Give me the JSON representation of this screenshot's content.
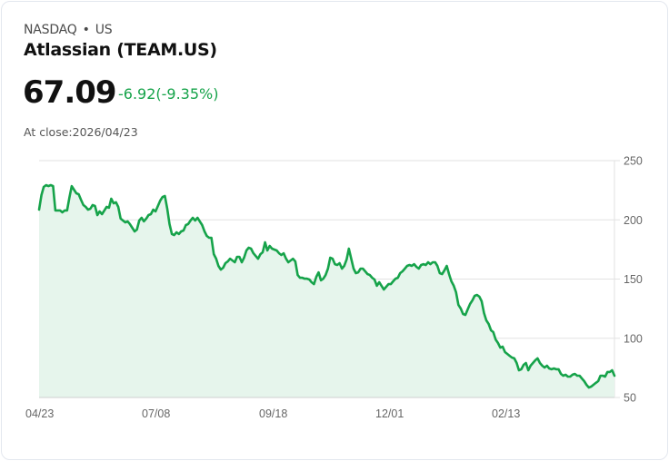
{
  "header": {
    "exchange": "NASDAQ",
    "separator": "•",
    "region": "US",
    "name": "Atlassian (TEAM.US)",
    "price": "67.09",
    "change": "-6.92(-9.35%)",
    "close_label": "At close:2026/04/23"
  },
  "colors": {
    "line": "#16a34a",
    "fill": "#e6f5ec",
    "grid": "#e2e2e2",
    "change": "#16a34a"
  },
  "chart_data": {
    "type": "area",
    "title": "Atlassian (TEAM.US)",
    "xlabel": "",
    "ylabel": "",
    "ylim": [
      50,
      250
    ],
    "yticks": [
      250,
      200,
      150,
      100,
      50
    ],
    "xticks": [
      "04/23",
      "07/08",
      "09/18",
      "12/01",
      "02/13"
    ],
    "grid": true,
    "legend": "none",
    "axis_position": "right",
    "start": "04/23",
    "end": "2026/04/23",
    "values": [
      208.6,
      220.9,
      227.8,
      229.3,
      228.5,
      229.3,
      228.5,
      207.9,
      207.9,
      207.9,
      206.3,
      207.9,
      207.9,
      218.6,
      228.5,
      225.5,
      222.4,
      221.6,
      217.0,
      212.5,
      210.9,
      208.6,
      209.4,
      212.5,
      211.7,
      204.0,
      207.1,
      204.8,
      207.9,
      210.9,
      210.2,
      217.8,
      214.0,
      214.8,
      210.9,
      201.0,
      199.4,
      197.9,
      198.7,
      196.4,
      193.3,
      190.2,
      191.8,
      199.4,
      201.7,
      198.7,
      201.0,
      204.0,
      204.8,
      208.6,
      207.1,
      211.7,
      216.3,
      219.3,
      220.1,
      209.4,
      196.4,
      188.0,
      187.2,
      189.5,
      188.0,
      190.2,
      191.0,
      195.6,
      196.4,
      199.4,
      201.7,
      199.4,
      201.7,
      198.7,
      195.6,
      190.2,
      186.4,
      184.9,
      184.9,
      171.1,
      167.2,
      161.1,
      158.0,
      159.6,
      163.4,
      164.9,
      167.2,
      165.7,
      164.2,
      168.8,
      168.8,
      164.2,
      168.0,
      174.1,
      176.4,
      175.7,
      171.8,
      169.5,
      167.2,
      171.0,
      172.6,
      181.0,
      174.1,
      178.0,
      175.7,
      174.9,
      174.1,
      171.8,
      170.3,
      171.8,
      167.2,
      164.2,
      165.7,
      167.2,
      164.9,
      153.4,
      151.1,
      151.1,
      150.3,
      150.3,
      149.6,
      147.3,
      145.7,
      151.9,
      155.7,
      148.9,
      150.3,
      153.4,
      158.8,
      168.0,
      167.2,
      162.6,
      161.9,
      163.4,
      158.8,
      161.1,
      166.5,
      175.7,
      167.2,
      158.8,
      155.0,
      155.7,
      158.8,
      158.8,
      156.5,
      154.2,
      153.4,
      151.1,
      149.6,
      144.3,
      147.3,
      144.3,
      141.2,
      143.5,
      145.7,
      145.7,
      148.1,
      150.3,
      151.1,
      155.0,
      156.5,
      158.8,
      161.1,
      161.9,
      161.1,
      162.6,
      160.3,
      158.8,
      161.9,
      162.6,
      161.9,
      164.2,
      162.6,
      164.2,
      164.2,
      161.1,
      155.0,
      154.2,
      157.3,
      161.1,
      154.2,
      148.1,
      144.3,
      138.9,
      128.2,
      125.1,
      120.5,
      119.7,
      124.3,
      128.9,
      132.0,
      135.8,
      136.6,
      135.1,
      131.2,
      121.3,
      115.1,
      112.1,
      106.7,
      105.2,
      99.0,
      96.0,
      92.1,
      92.9,
      88.3,
      86.8,
      85.2,
      83.7,
      83.0,
      79.1,
      73.0,
      73.8,
      77.6,
      79.1,
      73.0,
      76.8,
      79.1,
      81.4,
      83.0,
      79.1,
      76.8,
      75.3,
      76.8,
      74.5,
      73.8,
      74.5,
      73.8,
      73.8,
      69.9,
      68.4,
      69.2,
      67.6,
      67.6,
      69.2,
      69.9,
      68.4,
      68.4,
      66.1,
      63.8,
      60.7,
      58.4,
      59.2,
      60.7,
      62.3,
      63.8,
      68.4,
      68.4,
      67.6,
      71.5,
      71.5,
      73.0,
      68.4
    ]
  }
}
